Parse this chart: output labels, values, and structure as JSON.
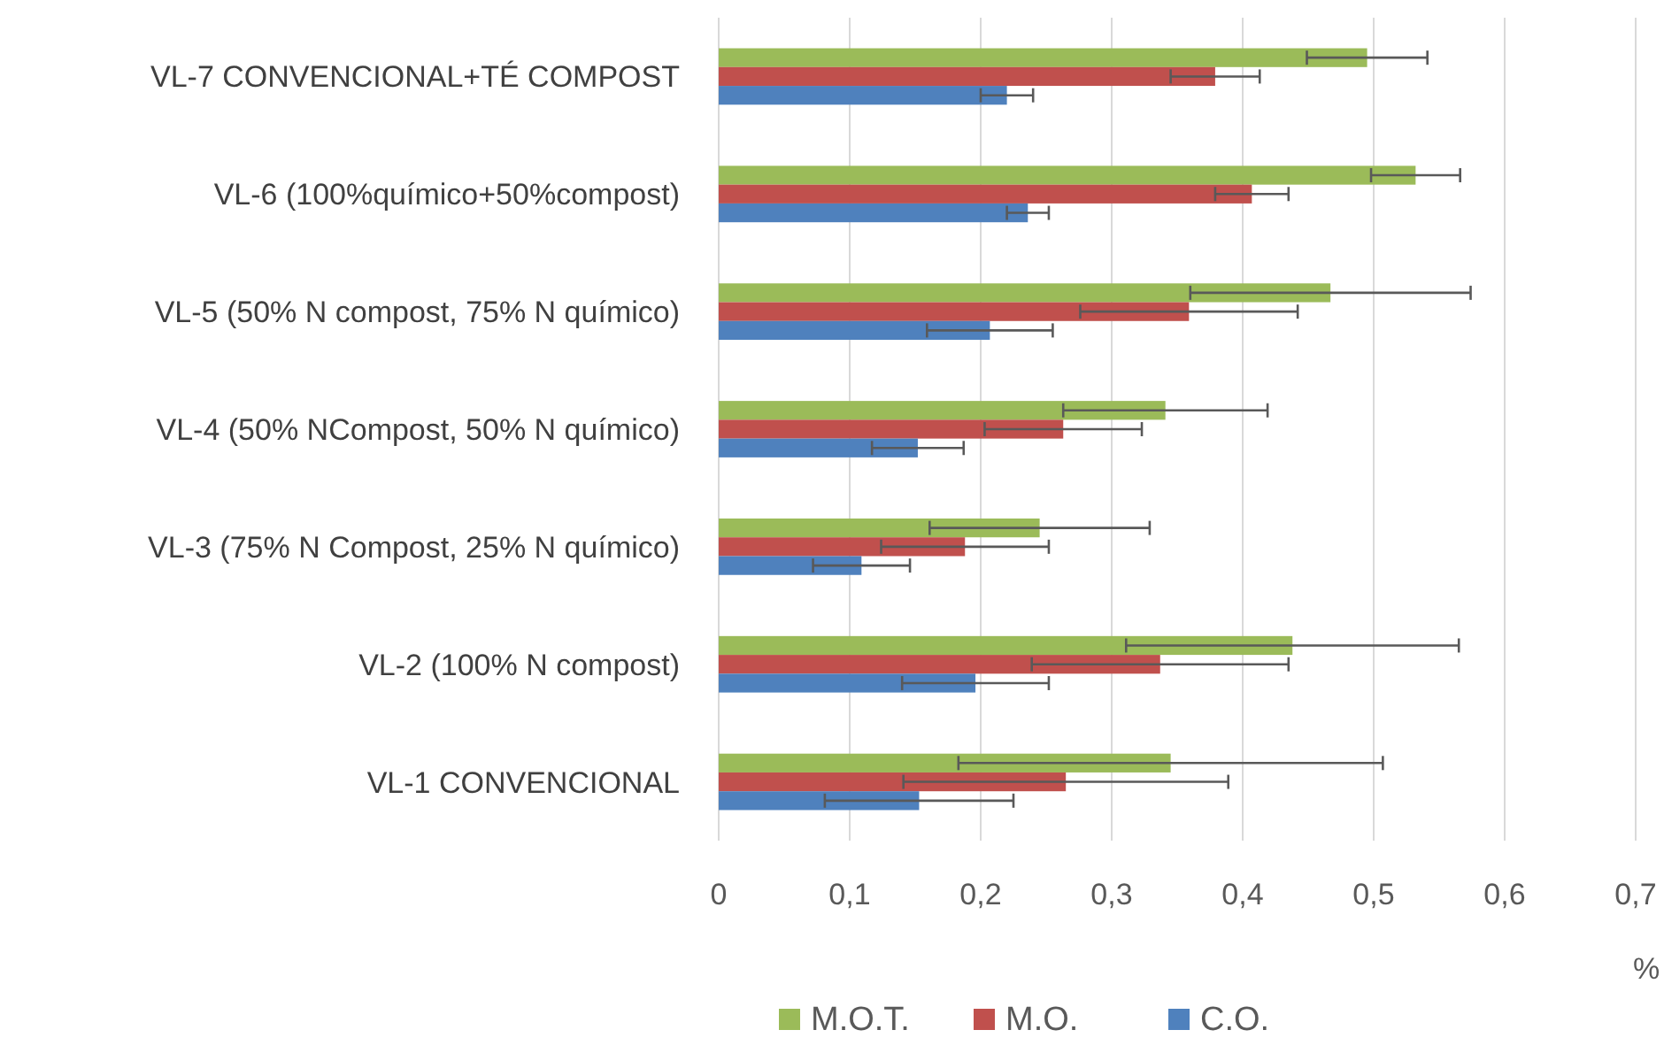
{
  "chart_data": {
    "type": "bar",
    "orientation": "horizontal",
    "xlabel": "%",
    "categories": [
      "VL-7 CONVENCIONAL+TÉ COMPOST",
      "VL-6 (100%químico+50%compost)",
      "VL-5 (50% N compost, 75% N químico)",
      "VL-4 (50% NCompost, 50% N químico)",
      "VL-3 (75% N Compost, 25% N químico)",
      "VL-2 (100% N compost)",
      "VL-1 CONVENCIONAL"
    ],
    "series": [
      {
        "name": "M.O.T.",
        "color": "#9bbb59",
        "values": [
          0.495,
          0.532,
          0.467,
          0.341,
          0.245,
          0.438,
          0.345
        ],
        "errors": [
          0.046,
          0.034,
          0.107,
          0.078,
          0.084,
          0.127,
          0.162
        ]
      },
      {
        "name": "M.O.",
        "color": "#c0504d",
        "values": [
          0.379,
          0.407,
          0.359,
          0.263,
          0.188,
          0.337,
          0.265
        ],
        "errors": [
          0.034,
          0.028,
          0.083,
          0.06,
          0.064,
          0.098,
          0.124
        ]
      },
      {
        "name": "C.O.",
        "color": "#4f81bd",
        "values": [
          0.22,
          0.236,
          0.207,
          0.152,
          0.109,
          0.196,
          0.153
        ],
        "errors": [
          0.02,
          0.016,
          0.048,
          0.035,
          0.037,
          0.056,
          0.072
        ]
      }
    ],
    "xlim": [
      0,
      0.7
    ],
    "xticks": [
      {
        "value": 0,
        "label": "0"
      },
      {
        "value": 0.1,
        "label": "0,1"
      },
      {
        "value": 0.2,
        "label": "0,2"
      },
      {
        "value": 0.3,
        "label": "0,3"
      },
      {
        "value": 0.4,
        "label": "0,4"
      },
      {
        "value": 0.5,
        "label": "0,5"
      },
      {
        "value": 0.6,
        "label": "0,6"
      },
      {
        "value": 0.7,
        "label": "0,7"
      }
    ],
    "grid": "x",
    "legend": "bottom"
  }
}
